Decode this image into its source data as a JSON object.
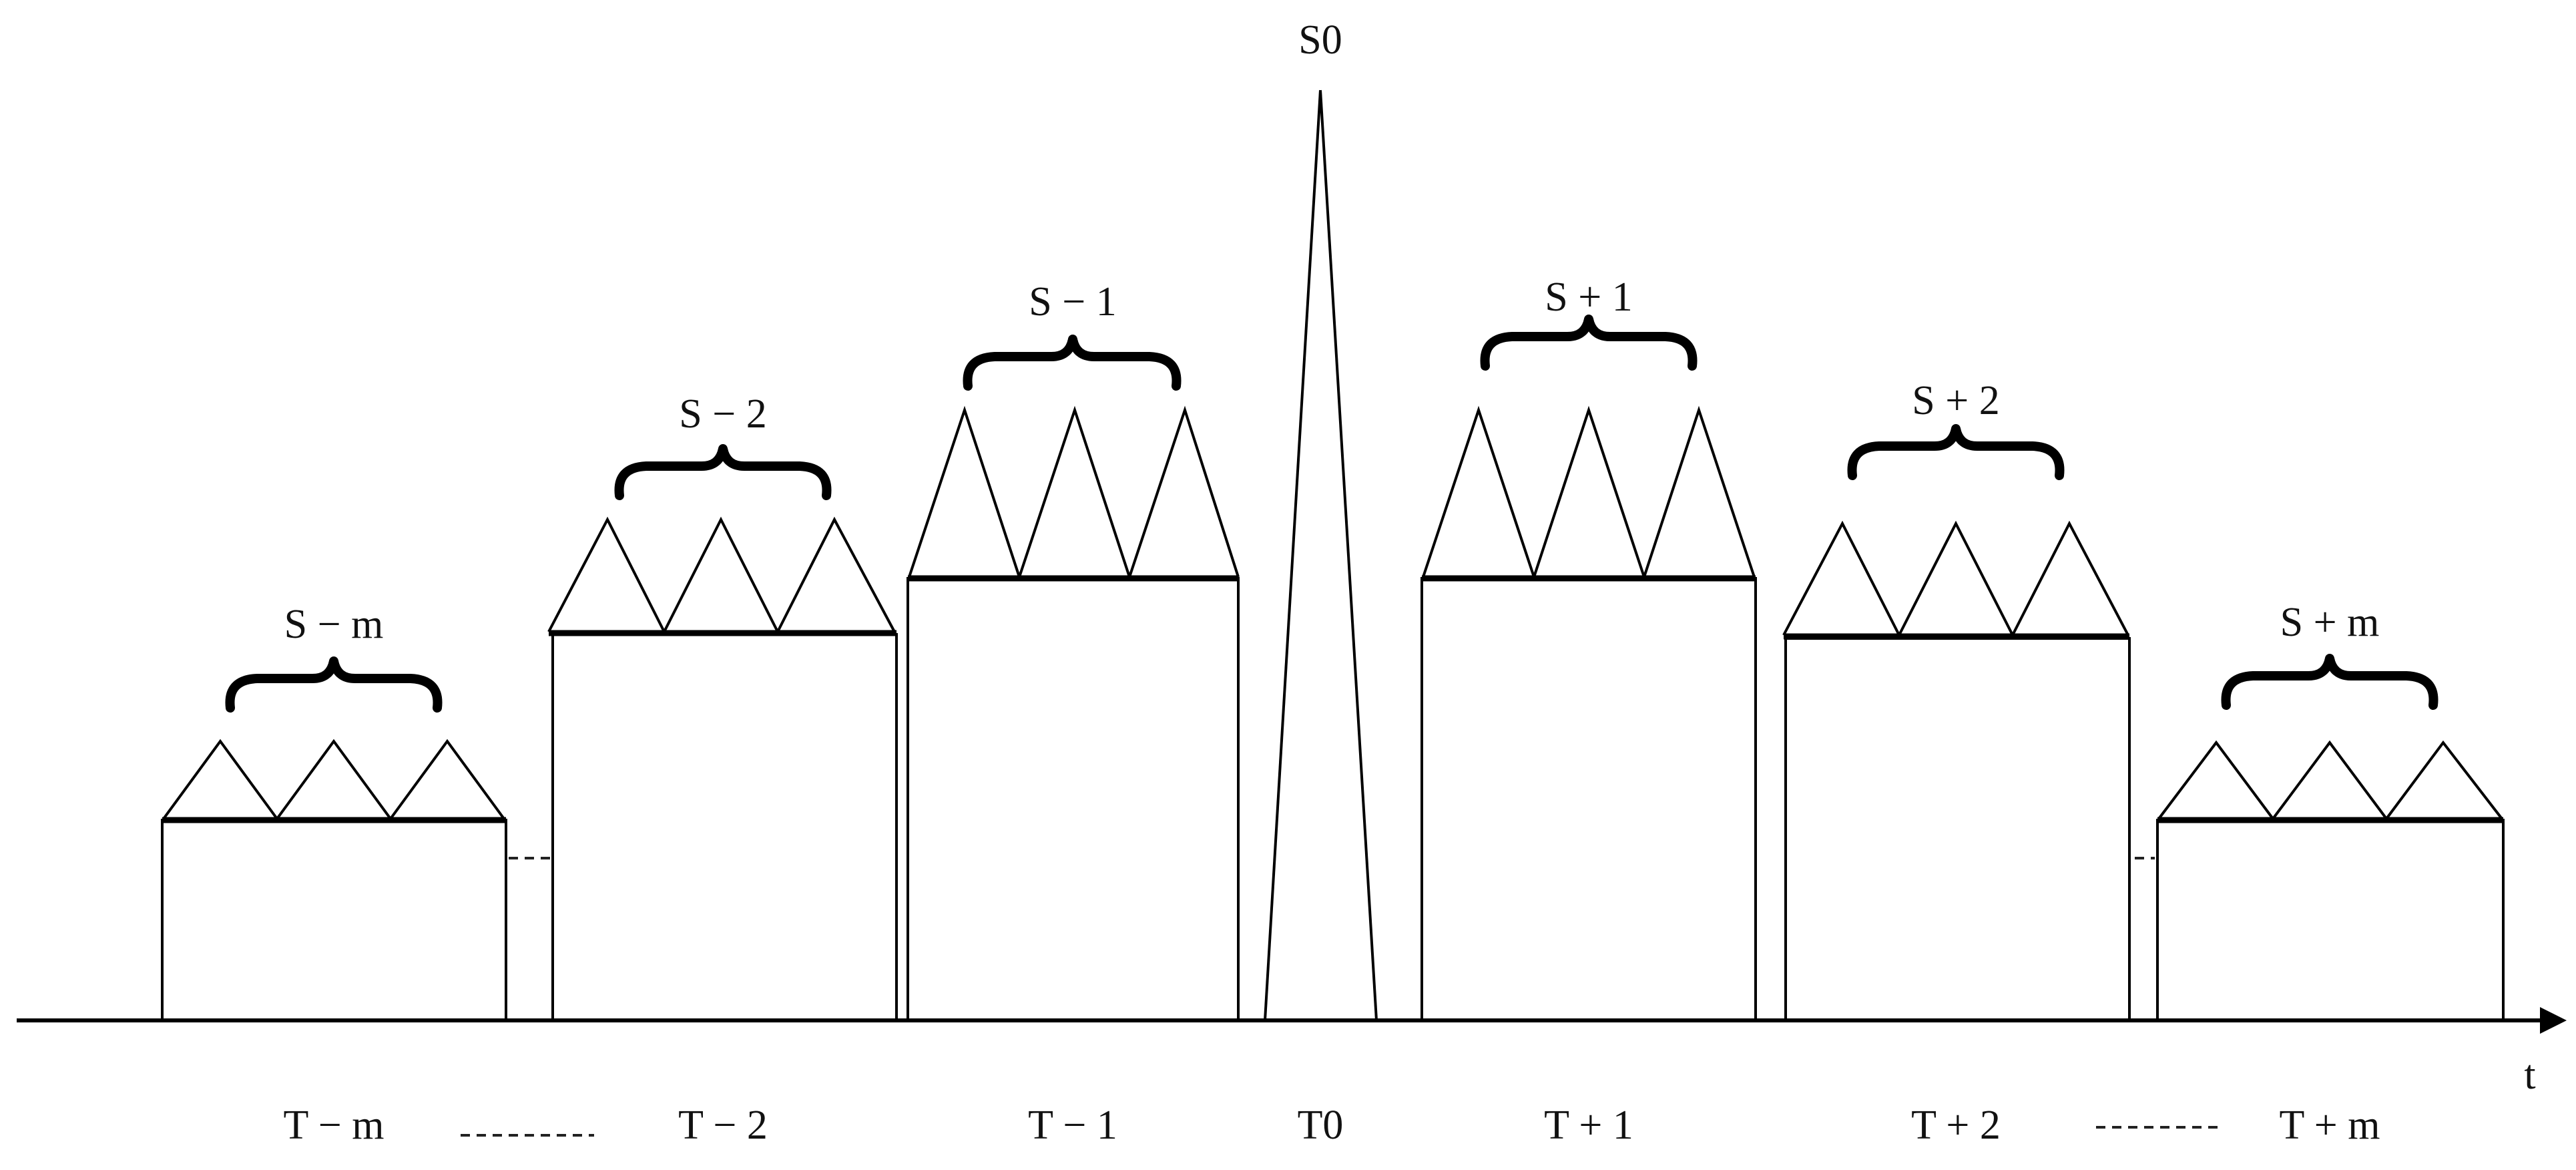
{
  "diagram": {
    "axis_label": "t",
    "peak": {
      "top_label": "S0",
      "bottom_label": "T0"
    },
    "blocks": [
      {
        "id": "minus-m",
        "top_label": "S − m",
        "bottom_label": "T − m"
      },
      {
        "id": "minus-2",
        "top_label": "S − 2",
        "bottom_label": "T − 2"
      },
      {
        "id": "minus-1",
        "top_label": "S − 1",
        "bottom_label": "T − 1"
      },
      {
        "id": "plus-1",
        "top_label": "S + 1",
        "bottom_label": "T + 1"
      },
      {
        "id": "plus-2",
        "top_label": "S + 2",
        "bottom_label": "T + 2"
      },
      {
        "id": "plus-m",
        "top_label": "S + m",
        "bottom_label": "T + m"
      }
    ]
  }
}
